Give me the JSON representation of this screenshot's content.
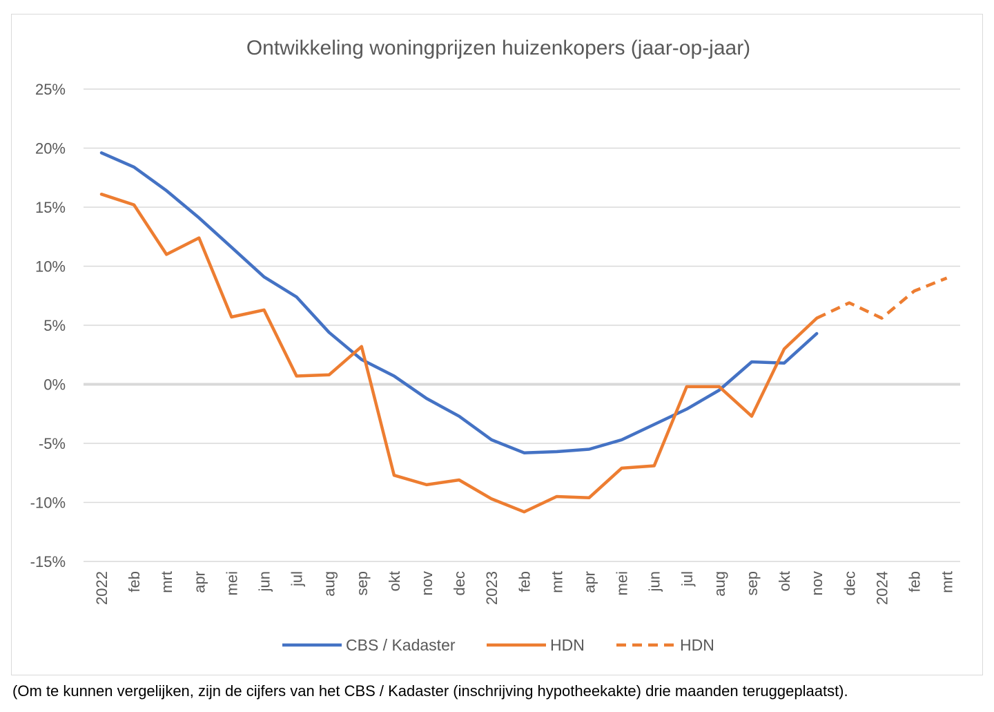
{
  "chart_data": {
    "type": "line",
    "title": "Ontwikkeling woningprijzen huizenkopers (jaar-op-jaar)",
    "xlabel": "",
    "ylabel": "",
    "categories": [
      "2022",
      "feb",
      "mrt",
      "apr",
      "mei",
      "jun",
      "jul",
      "aug",
      "sep",
      "okt",
      "nov",
      "dec",
      "2023",
      "feb",
      "mrt",
      "apr",
      "mei",
      "jun",
      "jul",
      "aug",
      "sep",
      "okt",
      "nov",
      "dec",
      "2024",
      "feb",
      "mrt"
    ],
    "ylim": [
      -15,
      25
    ],
    "yticks": [
      -15,
      -10,
      -5,
      0,
      5,
      10,
      15,
      20,
      25
    ],
    "ytick_labels": [
      "-15%",
      "-10%",
      "-5%",
      "0%",
      "5%",
      "10%",
      "15%",
      "20%",
      "25%"
    ],
    "grid": true,
    "legend_position": "bottom",
    "series": [
      {
        "name": "CBS / Kadaster",
        "color": "#4472c4",
        "style": "solid",
        "values": [
          19.6,
          18.4,
          16.4,
          14.1,
          11.6,
          9.1,
          7.4,
          4.4,
          2.1,
          0.7,
          -1.2,
          -2.7,
          -4.7,
          -5.8,
          -5.7,
          -5.5,
          -4.7,
          -3.4,
          -2.1,
          -0.5,
          1.9,
          1.8,
          4.3,
          null,
          null,
          null,
          null
        ]
      },
      {
        "name": "HDN",
        "color": "#ed7d31",
        "style": "solid",
        "values": [
          16.1,
          15.2,
          11.0,
          12.4,
          5.7,
          6.3,
          0.7,
          0.8,
          3.2,
          -7.7,
          -8.5,
          -8.1,
          -9.7,
          -10.8,
          -9.5,
          -9.6,
          -7.1,
          -6.9,
          -0.2,
          -0.2,
          -2.7,
          3.0,
          5.6,
          null,
          null,
          null,
          null
        ]
      },
      {
        "name": "HDN",
        "color": "#ed7d31",
        "style": "dashed",
        "values": [
          null,
          null,
          null,
          null,
          null,
          null,
          null,
          null,
          null,
          null,
          null,
          null,
          null,
          null,
          null,
          null,
          null,
          null,
          null,
          null,
          null,
          null,
          5.6,
          6.9,
          5.6,
          7.9,
          9.0
        ]
      }
    ]
  },
  "caption": "(Om te kunnen vergelijken, zijn de cijfers van het CBS / Kadaster (inschrijving hypotheekakte) drie maanden teruggeplaatst)."
}
